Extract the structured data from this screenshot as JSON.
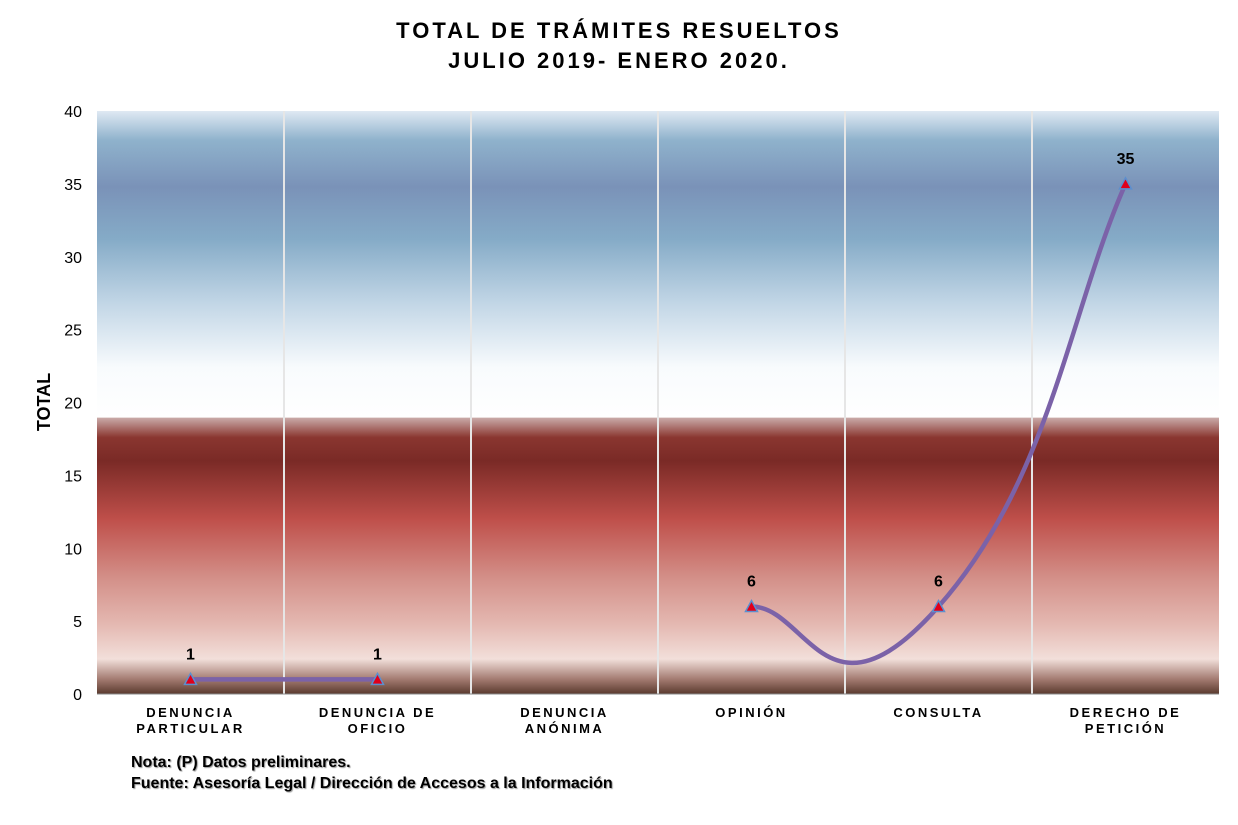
{
  "chart_data": {
    "type": "line",
    "title": [
      "TOTAL DE TRÁMITES  RESUELTOS",
      "JULIO 2019- ENERO 2020."
    ],
    "ylabel": "TOTAL",
    "ylim": [
      0,
      40
    ],
    "yticks": [
      0,
      5,
      10,
      15,
      20,
      25,
      30,
      35,
      40
    ],
    "categories": [
      [
        "DENUNCIA",
        "PARTICULAR"
      ],
      [
        "DENUNCIA DE",
        "OFICIO"
      ],
      [
        "DENUNCIA",
        "ANÓNIMA"
      ],
      [
        "OPINIÓN"
      ],
      [
        "CONSULTA"
      ],
      [
        "DERECHO DE",
        "PETICIÓN"
      ]
    ],
    "series": [
      {
        "values": [
          1,
          1,
          null,
          6,
          6,
          35
        ],
        "data_labels": [
          "1",
          "1",
          "",
          "6",
          "6",
          "35"
        ],
        "line_color": "#7b62a8",
        "marker": "triangle",
        "marker_color": "#e0001a",
        "marker_edge": "#5b8fcf"
      }
    ],
    "grid": {
      "vertical": true,
      "horizontal": false
    }
  },
  "notes": {
    "nota": "Nota: (P) Datos preliminares.",
    "fuente": "Fuente: Asesoría Legal /  Dirección de Accesos a la Información"
  }
}
